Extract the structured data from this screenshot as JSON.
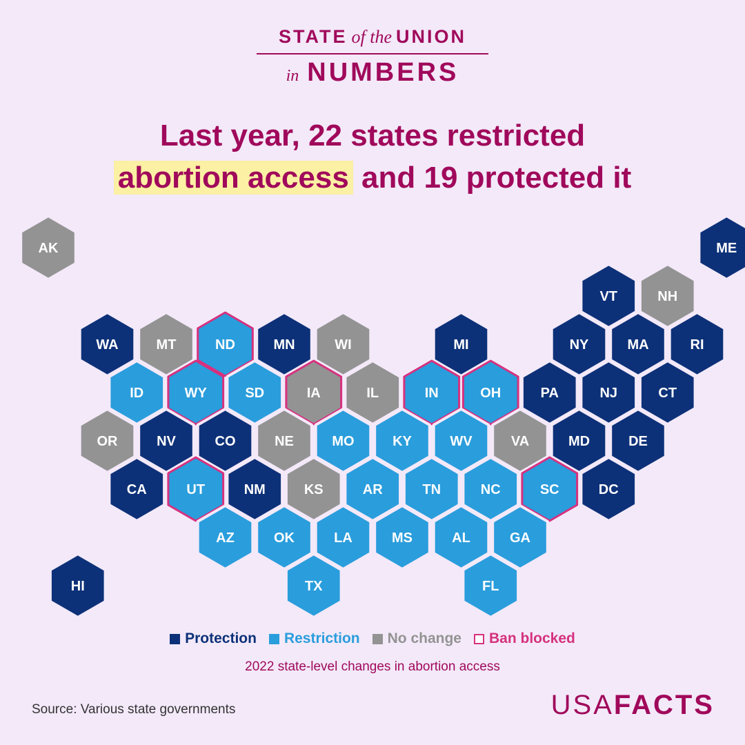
{
  "header": {
    "brand_line1_a": "STATE",
    "brand_line1_b": "of the",
    "brand_line1_c": "UNION",
    "brand_line2_a": "in",
    "brand_line2_b": "NUMBERS",
    "headline_line1": "Last year, 22 states restricted",
    "headline_highlight": "abortion access",
    "headline_rest": "and 19 protected it"
  },
  "colors": {
    "protection": "#0d3178",
    "restriction": "#2a9ddc",
    "no_change": "#939393",
    "ban_blocked": "#d6317e",
    "hex_border": "#f3e9f9",
    "brand": "#a0095b"
  },
  "legend": [
    {
      "label": "Protection",
      "status": "protection",
      "color": "#0d3178",
      "text_color": "#0d3178"
    },
    {
      "label": "Restriction",
      "status": "restriction",
      "color": "#2a9ddc",
      "text_color": "#2a9ddc"
    },
    {
      "label": "No change",
      "status": "no_change",
      "color": "#939393",
      "text_color": "#939393"
    },
    {
      "label": "Ban blocked",
      "status": "ban_blocked",
      "color": "#d6317e",
      "text_color": "#d6317e"
    }
  ],
  "subtitle": "2022 state-level changes in abortion access",
  "source": "Source: Various state governments",
  "logo": {
    "light": "USA",
    "bold": "FACTS"
  },
  "map_data": {
    "states": [
      {
        "abbr": "AK",
        "status": "no_change",
        "ban_blocked": false,
        "col": 0,
        "row": 0
      },
      {
        "abbr": "ME",
        "status": "protection",
        "ban_blocked": false,
        "col": 11.5,
        "row": 0
      },
      {
        "abbr": "VT",
        "status": "protection",
        "ban_blocked": false,
        "col": 9.5,
        "row": 1
      },
      {
        "abbr": "NH",
        "status": "no_change",
        "ban_blocked": false,
        "col": 10.5,
        "row": 1
      },
      {
        "abbr": "WA",
        "status": "protection",
        "ban_blocked": false,
        "col": 1,
        "row": 2
      },
      {
        "abbr": "MT",
        "status": "no_change",
        "ban_blocked": false,
        "col": 2,
        "row": 2
      },
      {
        "abbr": "ND",
        "status": "restriction",
        "ban_blocked": true,
        "col": 3,
        "row": 2
      },
      {
        "abbr": "MN",
        "status": "protection",
        "ban_blocked": false,
        "col": 4,
        "row": 2
      },
      {
        "abbr": "WI",
        "status": "no_change",
        "ban_blocked": false,
        "col": 5,
        "row": 2
      },
      {
        "abbr": "MI",
        "status": "protection",
        "ban_blocked": false,
        "col": 7,
        "row": 2
      },
      {
        "abbr": "NY",
        "status": "protection",
        "ban_blocked": false,
        "col": 9,
        "row": 2
      },
      {
        "abbr": "MA",
        "status": "protection",
        "ban_blocked": false,
        "col": 10,
        "row": 2
      },
      {
        "abbr": "RI",
        "status": "protection",
        "ban_blocked": false,
        "col": 11,
        "row": 2
      },
      {
        "abbr": "ID",
        "status": "restriction",
        "ban_blocked": false,
        "col": 1.5,
        "row": 3
      },
      {
        "abbr": "WY",
        "status": "restriction",
        "ban_blocked": true,
        "col": 2.5,
        "row": 3
      },
      {
        "abbr": "SD",
        "status": "restriction",
        "ban_blocked": false,
        "col": 3.5,
        "row": 3
      },
      {
        "abbr": "IA",
        "status": "no_change",
        "ban_blocked": true,
        "col": 4.5,
        "row": 3
      },
      {
        "abbr": "IL",
        "status": "no_change",
        "ban_blocked": false,
        "col": 5.5,
        "row": 3
      },
      {
        "abbr": "IN",
        "status": "restriction",
        "ban_blocked": true,
        "col": 6.5,
        "row": 3
      },
      {
        "abbr": "OH",
        "status": "restriction",
        "ban_blocked": true,
        "col": 7.5,
        "row": 3
      },
      {
        "abbr": "PA",
        "status": "protection",
        "ban_blocked": false,
        "col": 8.5,
        "row": 3
      },
      {
        "abbr": "NJ",
        "status": "protection",
        "ban_blocked": false,
        "col": 9.5,
        "row": 3
      },
      {
        "abbr": "CT",
        "status": "protection",
        "ban_blocked": false,
        "col": 10.5,
        "row": 3
      },
      {
        "abbr": "OR",
        "status": "no_change",
        "ban_blocked": false,
        "col": 1,
        "row": 4
      },
      {
        "abbr": "NV",
        "status": "protection",
        "ban_blocked": false,
        "col": 2,
        "row": 4
      },
      {
        "abbr": "CO",
        "status": "protection",
        "ban_blocked": false,
        "col": 3,
        "row": 4
      },
      {
        "abbr": "NE",
        "status": "no_change",
        "ban_blocked": false,
        "col": 4,
        "row": 4
      },
      {
        "abbr": "MO",
        "status": "restriction",
        "ban_blocked": false,
        "col": 5,
        "row": 4
      },
      {
        "abbr": "KY",
        "status": "restriction",
        "ban_blocked": false,
        "col": 6,
        "row": 4
      },
      {
        "abbr": "WV",
        "status": "restriction",
        "ban_blocked": false,
        "col": 7,
        "row": 4
      },
      {
        "abbr": "VA",
        "status": "no_change",
        "ban_blocked": false,
        "col": 8,
        "row": 4
      },
      {
        "abbr": "MD",
        "status": "protection",
        "ban_blocked": false,
        "col": 9,
        "row": 4
      },
      {
        "abbr": "DE",
        "status": "protection",
        "ban_blocked": false,
        "col": 10,
        "row": 4
      },
      {
        "abbr": "CA",
        "status": "protection",
        "ban_blocked": false,
        "col": 1.5,
        "row": 5
      },
      {
        "abbr": "UT",
        "status": "restriction",
        "ban_blocked": true,
        "col": 2.5,
        "row": 5
      },
      {
        "abbr": "NM",
        "status": "protection",
        "ban_blocked": false,
        "col": 3.5,
        "row": 5
      },
      {
        "abbr": "KS",
        "status": "no_change",
        "ban_blocked": false,
        "col": 4.5,
        "row": 5
      },
      {
        "abbr": "AR",
        "status": "restriction",
        "ban_blocked": false,
        "col": 5.5,
        "row": 5
      },
      {
        "abbr": "TN",
        "status": "restriction",
        "ban_blocked": false,
        "col": 6.5,
        "row": 5
      },
      {
        "abbr": "NC",
        "status": "restriction",
        "ban_blocked": false,
        "col": 7.5,
        "row": 5
      },
      {
        "abbr": "SC",
        "status": "restriction",
        "ban_blocked": true,
        "col": 8.5,
        "row": 5
      },
      {
        "abbr": "DC",
        "status": "protection",
        "ban_blocked": false,
        "col": 9.5,
        "row": 5
      },
      {
        "abbr": "AZ",
        "status": "restriction",
        "ban_blocked": false,
        "col": 3,
        "row": 6
      },
      {
        "abbr": "OK",
        "status": "restriction",
        "ban_blocked": false,
        "col": 4,
        "row": 6
      },
      {
        "abbr": "LA",
        "status": "restriction",
        "ban_blocked": false,
        "col": 5,
        "row": 6
      },
      {
        "abbr": "MS",
        "status": "restriction",
        "ban_blocked": false,
        "col": 6,
        "row": 6
      },
      {
        "abbr": "AL",
        "status": "restriction",
        "ban_blocked": false,
        "col": 7,
        "row": 6
      },
      {
        "abbr": "GA",
        "status": "restriction",
        "ban_blocked": false,
        "col": 8,
        "row": 6
      },
      {
        "abbr": "HI",
        "status": "protection",
        "ban_blocked": false,
        "col": 0.5,
        "row": 7
      },
      {
        "abbr": "TX",
        "status": "restriction",
        "ban_blocked": false,
        "col": 4.5,
        "row": 7
      },
      {
        "abbr": "FL",
        "status": "restriction",
        "ban_blocked": false,
        "col": 7.5,
        "row": 7
      }
    ]
  }
}
